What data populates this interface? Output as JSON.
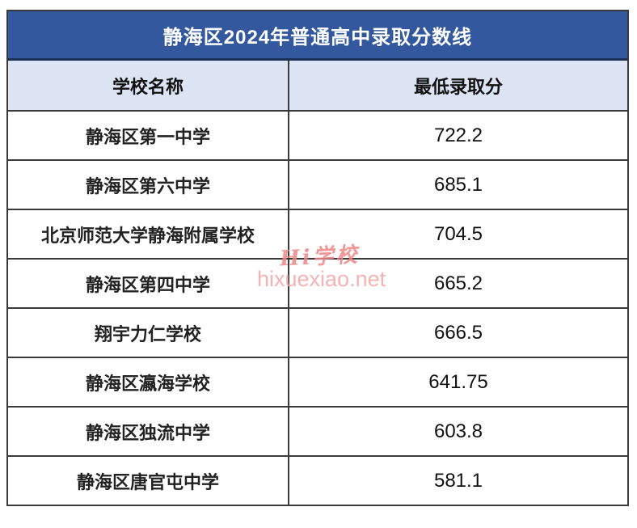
{
  "table": {
    "title": "静海区2024年普通高中录取分数线",
    "columns": {
      "school": "学校名称",
      "score": "最低录取分"
    },
    "rows": [
      {
        "school": "静海区第一中学",
        "score": "722.2"
      },
      {
        "school": "静海区第六中学",
        "score": "685.1"
      },
      {
        "school": "北京师范大学静海附属学校",
        "score": "704.5"
      },
      {
        "school": "静海区第四中学",
        "score": "665.2"
      },
      {
        "school": "翔宇力仁学校",
        "score": "666.5"
      },
      {
        "school": "静海区瀛海学校",
        "score": "641.75"
      },
      {
        "school": "静海区独流中学",
        "score": "603.8"
      },
      {
        "school": "静海区唐官屯中学",
        "score": "581.1"
      }
    ]
  },
  "watermark": {
    "logo": "Hi学校",
    "site": "hixuexiao.net"
  },
  "colors": {
    "title_bg": "#33589e",
    "title_border": "#1c2f55",
    "header_bg": "#dce3f2",
    "grid_border": "#3a3a3a",
    "watermark_logo": "#ee8585",
    "watermark_site": "#f3a6a6"
  }
}
